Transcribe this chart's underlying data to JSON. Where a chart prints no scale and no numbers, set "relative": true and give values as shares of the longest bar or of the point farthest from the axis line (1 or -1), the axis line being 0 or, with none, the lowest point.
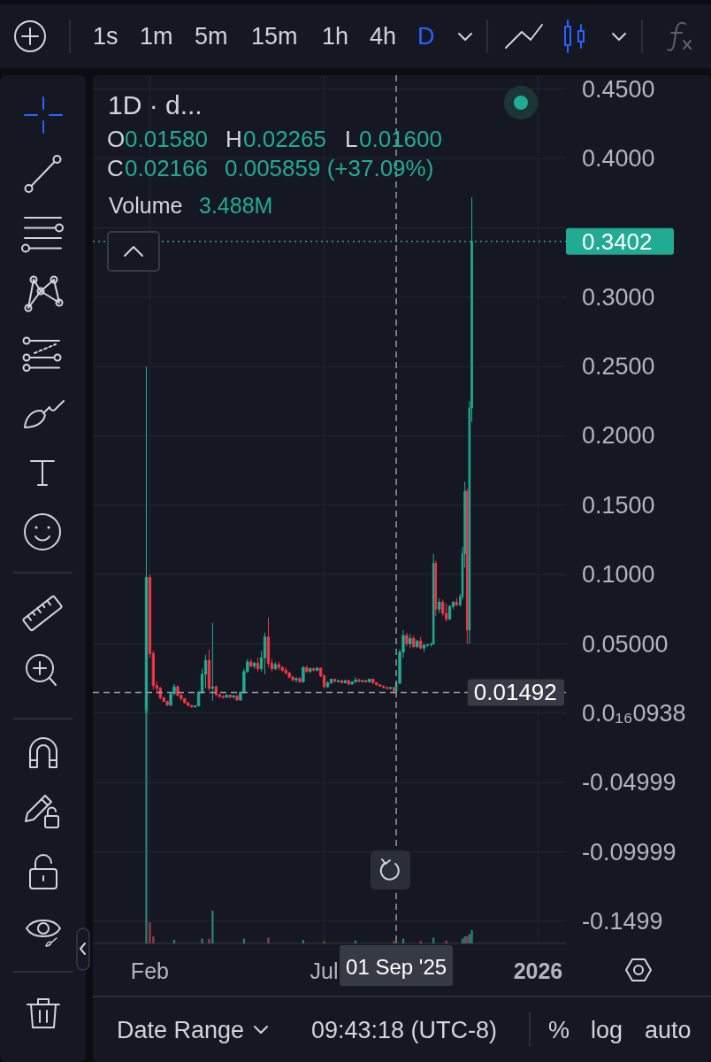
{
  "chart_data": [
    {
      "type": "candlestick",
      "title": "1D · d...",
      "x": [
        "2025-01-29",
        "2025-02-01",
        "2025-02-04",
        "2025-02-07",
        "2025-02-10",
        "2025-02-13",
        "2025-02-16",
        "2025-02-19",
        "2025-02-22",
        "2025-02-25",
        "2025-02-28",
        "2025-03-03",
        "2025-03-06",
        "2025-03-09",
        "2025-03-12",
        "2025-03-15",
        "2025-03-18",
        "2025-03-21",
        "2025-03-24",
        "2025-03-27",
        "2025-03-30",
        "2025-04-02",
        "2025-04-05",
        "2025-04-08",
        "2025-04-11",
        "2025-04-14",
        "2025-04-17",
        "2025-04-20",
        "2025-04-23",
        "2025-04-26",
        "2025-04-29",
        "2025-05-02",
        "2025-05-05",
        "2025-05-08",
        "2025-05-11",
        "2025-05-14",
        "2025-05-17",
        "2025-05-20",
        "2025-05-23",
        "2025-05-26",
        "2025-05-29",
        "2025-06-01",
        "2025-06-04",
        "2025-06-07",
        "2025-06-10",
        "2025-06-13",
        "2025-06-16",
        "2025-06-19",
        "2025-06-22",
        "2025-06-25",
        "2025-06-28",
        "2025-07-01",
        "2025-07-04",
        "2025-07-07",
        "2025-07-10",
        "2025-07-13",
        "2025-07-16",
        "2025-07-19",
        "2025-07-22",
        "2025-07-25",
        "2025-07-28",
        "2025-07-31",
        "2025-08-03",
        "2025-08-06",
        "2025-08-09",
        "2025-08-12",
        "2025-08-15",
        "2025-08-18",
        "2025-08-21",
        "2025-08-24",
        "2025-08-27",
        "2025-08-30",
        "2025-09-01",
        "2025-09-04",
        "2025-09-07",
        "2025-09-10",
        "2025-09-13",
        "2025-09-16",
        "2025-09-19",
        "2025-09-22",
        "2025-09-25",
        "2025-09-28",
        "2025-10-01",
        "2025-10-03",
        "2025-10-05",
        "2025-10-08",
        "2025-10-11",
        "2025-10-14",
        "2025-10-17",
        "2025-10-20",
        "2025-10-23",
        "2025-10-26",
        "2025-10-28",
        "2025-10-30",
        "2025-11-01",
        "2025-11-03",
        "2025-11-05"
      ],
      "ohlc": [
        [
          0.0003,
          0.25,
          0.0002,
          0.098
        ],
        [
          0.098,
          0.1,
          0.04,
          0.043
        ],
        [
          0.043,
          0.045,
          0.017,
          0.02
        ],
        [
          0.02,
          0.023,
          0.014,
          0.018
        ],
        [
          0.018,
          0.019,
          0.01,
          0.011
        ],
        [
          0.011,
          0.012,
          0.008,
          0.0085
        ],
        [
          0.0085,
          0.009,
          0.005,
          0.006
        ],
        [
          0.006,
          0.015,
          0.005,
          0.014
        ],
        [
          0.014,
          0.021,
          0.013,
          0.019
        ],
        [
          0.019,
          0.02,
          0.012,
          0.013
        ],
        [
          0.013,
          0.014,
          0.009,
          0.0105
        ],
        [
          0.0105,
          0.011,
          0.007,
          0.0075
        ],
        [
          0.0075,
          0.008,
          0.005,
          0.0055
        ],
        [
          0.0055,
          0.006,
          0.004,
          0.0045
        ],
        [
          0.0045,
          0.006,
          0.004,
          0.0052
        ],
        [
          0.0052,
          0.016,
          0.005,
          0.015
        ],
        [
          0.015,
          0.032,
          0.014,
          0.028
        ],
        [
          0.028,
          0.042,
          0.018,
          0.038
        ],
        [
          0.038,
          0.046,
          0.016,
          0.018
        ],
        [
          0.018,
          0.065,
          0.009,
          0.019
        ],
        [
          0.019,
          0.02,
          0.012,
          0.0135
        ],
        [
          0.0135,
          0.014,
          0.011,
          0.012
        ],
        [
          0.012,
          0.013,
          0.0105,
          0.0115
        ],
        [
          0.0115,
          0.0135,
          0.011,
          0.013
        ],
        [
          0.013,
          0.0135,
          0.011,
          0.0115
        ],
        [
          0.0115,
          0.013,
          0.011,
          0.0125
        ],
        [
          0.0125,
          0.013,
          0.009,
          0.0095
        ],
        [
          0.0095,
          0.016,
          0.009,
          0.015
        ],
        [
          0.015,
          0.032,
          0.014,
          0.03
        ],
        [
          0.03,
          0.039,
          0.029,
          0.037
        ],
        [
          0.037,
          0.039,
          0.033,
          0.034
        ],
        [
          0.034,
          0.037,
          0.032,
          0.036
        ],
        [
          0.036,
          0.04,
          0.03,
          0.032
        ],
        [
          0.032,
          0.045,
          0.03,
          0.04
        ],
        [
          0.04,
          0.058,
          0.028,
          0.055
        ],
        [
          0.055,
          0.069,
          0.033,
          0.036
        ],
        [
          0.036,
          0.039,
          0.03,
          0.032
        ],
        [
          0.032,
          0.037,
          0.031,
          0.035
        ],
        [
          0.035,
          0.037,
          0.031,
          0.033
        ],
        [
          0.033,
          0.034,
          0.03,
          0.031
        ],
        [
          0.031,
          0.033,
          0.028,
          0.029
        ],
        [
          0.029,
          0.03,
          0.025,
          0.026
        ],
        [
          0.026,
          0.027,
          0.023,
          0.024
        ],
        [
          0.024,
          0.026,
          0.022,
          0.025
        ],
        [
          0.025,
          0.026,
          0.022,
          0.0225
        ],
        [
          0.0225,
          0.034,
          0.022,
          0.033
        ],
        [
          0.033,
          0.0345,
          0.029,
          0.03
        ],
        [
          0.03,
          0.033,
          0.029,
          0.032
        ],
        [
          0.032,
          0.033,
          0.03,
          0.031
        ],
        [
          0.031,
          0.0335,
          0.03,
          0.0325
        ],
        [
          0.0325,
          0.033,
          0.026,
          0.027
        ],
        [
          0.027,
          0.028,
          0.018,
          0.019
        ],
        [
          0.019,
          0.023,
          0.0185,
          0.022
        ],
        [
          0.022,
          0.025,
          0.021,
          0.0245
        ],
        [
          0.0245,
          0.025,
          0.022,
          0.023
        ],
        [
          0.023,
          0.024,
          0.022,
          0.0235
        ],
        [
          0.0235,
          0.024,
          0.0215,
          0.022
        ],
        [
          0.022,
          0.024,
          0.0215,
          0.0235
        ],
        [
          0.0235,
          0.024,
          0.02,
          0.021
        ],
        [
          0.021,
          0.023,
          0.0205,
          0.0225
        ],
        [
          0.0225,
          0.026,
          0.022,
          0.024
        ],
        [
          0.024,
          0.025,
          0.022,
          0.023
        ],
        [
          0.023,
          0.024,
          0.022,
          0.0235
        ],
        [
          0.0235,
          0.024,
          0.022,
          0.0225
        ],
        [
          0.0225,
          0.025,
          0.022,
          0.0245
        ],
        [
          0.0245,
          0.025,
          0.021,
          0.022
        ],
        [
          0.022,
          0.0225,
          0.02,
          0.0205
        ],
        [
          0.0205,
          0.021,
          0.019,
          0.0195
        ],
        [
          0.0195,
          0.02,
          0.018,
          0.0185
        ],
        [
          0.0185,
          0.019,
          0.017,
          0.0178
        ],
        [
          0.0178,
          0.019,
          0.017,
          0.0185
        ],
        [
          0.0185,
          0.019,
          0.014,
          0.0158
        ],
        [
          0.0158,
          0.02265,
          0.0158,
          0.02166
        ],
        [
          0.02166,
          0.046,
          0.021,
          0.044
        ],
        [
          0.044,
          0.06,
          0.04,
          0.056
        ],
        [
          0.056,
          0.058,
          0.048,
          0.05
        ],
        [
          0.05,
          0.057,
          0.047,
          0.054
        ],
        [
          0.054,
          0.056,
          0.047,
          0.048
        ],
        [
          0.048,
          0.053,
          0.047,
          0.052
        ],
        [
          0.052,
          0.055,
          0.046,
          0.047
        ],
        [
          0.047,
          0.05,
          0.044,
          0.049
        ],
        [
          0.049,
          0.05,
          0.048,
          0.0495
        ],
        [
          0.0495,
          0.051,
          0.048,
          0.05
        ],
        [
          0.05,
          0.115,
          0.049,
          0.108
        ],
        [
          0.108,
          0.11,
          0.07,
          0.075
        ],
        [
          0.075,
          0.083,
          0.072,
          0.08
        ],
        [
          0.08,
          0.082,
          0.07,
          0.072
        ],
        [
          0.072,
          0.079,
          0.066,
          0.068
        ],
        [
          0.068,
          0.078,
          0.067,
          0.077
        ],
        [
          0.077,
          0.081,
          0.075,
          0.08
        ],
        [
          0.08,
          0.083,
          0.077,
          0.078
        ],
        [
          0.078,
          0.086,
          0.077,
          0.084
        ],
        [
          0.084,
          0.12,
          0.082,
          0.115
        ],
        [
          0.115,
          0.167,
          0.105,
          0.16
        ],
        [
          0.16,
          0.162,
          0.05,
          0.06
        ],
        [
          0.06,
          0.225,
          0.05,
          0.22
        ],
        [
          0.22,
          0.372,
          0.21,
          0.3402
        ]
      ],
      "colors": [
        "#22ab94",
        "#f23645",
        "#f23645",
        "#f23645",
        "#f23645",
        "#f23645",
        "#f23645",
        "#22ab94",
        "#22ab94",
        "#f23645",
        "#f23645",
        "#f23645",
        "#f23645",
        "#f23645",
        "#22ab94",
        "#22ab94",
        "#22ab94",
        "#22ab94",
        "#f23645",
        "#22ab94",
        "#f23645",
        "#f23645",
        "#f23645",
        "#22ab94",
        "#f23645",
        "#22ab94",
        "#f23645",
        "#22ab94",
        "#22ab94",
        "#22ab94",
        "#f23645",
        "#22ab94",
        "#f23645",
        "#22ab94",
        "#22ab94",
        "#f23645",
        "#f23645",
        "#22ab94",
        "#f23645",
        "#f23645",
        "#f23645",
        "#f23645",
        "#f23645",
        "#22ab94",
        "#f23645",
        "#22ab94",
        "#f23645",
        "#22ab94",
        "#f23645",
        "#22ab94",
        "#f23645",
        "#f23645",
        "#22ab94",
        "#22ab94",
        "#f23645",
        "#22ab94",
        "#f23645",
        "#22ab94",
        "#f23645",
        "#22ab94",
        "#22ab94",
        "#f23645",
        "#22ab94",
        "#f23645",
        "#22ab94",
        "#f23645",
        "#f23645",
        "#f23645",
        "#f23645",
        "#f23645",
        "#22ab94",
        "#f23645",
        "#22ab94",
        "#22ab94",
        "#22ab94",
        "#f23645",
        "#22ab94",
        "#f23645",
        "#22ab94",
        "#f23645",
        "#22ab94",
        "#22ab94",
        "#22ab94",
        "#22ab94",
        "#f23645",
        "#22ab94",
        "#f23645",
        "#f23645",
        "#22ab94",
        "#22ab94",
        "#f23645",
        "#22ab94",
        "#22ab94",
        "#22ab94",
        "#f23645",
        "#22ab94",
        "#22ab94"
      ],
      "xlim": [
        "2024-12-14",
        "2026-01-25"
      ],
      "ylim": [
        -0.166,
        0.46
      ],
      "xticks": [
        {
          "value": "2025-02-01",
          "label": "Feb"
        },
        {
          "value": "2025-07-01",
          "label": "Jul"
        },
        {
          "value": "2026-01-01",
          "label": "2026"
        }
      ],
      "yticks": [
        {
          "value": 0.45,
          "label": "0.4500"
        },
        {
          "value": 0.4,
          "label": "0.4000"
        },
        {
          "value": 0.35,
          "label": null
        },
        {
          "value": 0.3,
          "label": "0.3000"
        },
        {
          "value": 0.25,
          "label": "0.2500"
        },
        {
          "value": 0.2,
          "label": "0.2000"
        },
        {
          "value": 0.15,
          "label": "0.1500"
        },
        {
          "value": 0.1,
          "label": "0.1000"
        },
        {
          "value": 0.05,
          "label": "0.05000"
        },
        {
          "value": 0,
          "label": "0.0₁₆0938"
        },
        -0.04999,
        -0.09999,
        -0.1499
      ],
      "grid": true,
      "ref_lines": [
        {
          "axis": "y",
          "value": 0.3402,
          "label": "0.3402",
          "color": "#22ab94",
          "line_style": "dotted"
        },
        {
          "axis": "y",
          "value": 0.01492,
          "label": "0.01492",
          "color": "#9598a1",
          "line_style": "dashed"
        },
        {
          "axis": "x",
          "value": "2025-09-01",
          "label": "01 Sep '25",
          "color": "#9598a1",
          "line_style": "dashed"
        }
      ],
      "annotations": [
        "1s",
        "1m",
        "5m",
        "15m",
        "1h",
        "4h",
        "D",
        "O",
        "0.01580",
        "H",
        "0.02265",
        "L",
        "0.01600",
        "C",
        "0.02166",
        "0.005859 (+37.09%)",
        "Volume",
        "3.488M",
        "Date Range",
        "09:43:18 (UTC-8)",
        "%",
        "log",
        "auto"
      ]
    },
    {
      "type": "bar",
      "relative": true,
      "x": [
        "2025-01-29",
        "2025-02-01",
        "2025-02-04",
        "2025-02-22",
        "2025-03-18",
        "2025-03-24",
        "2025-03-27",
        "2025-04-23",
        "2025-05-14",
        "2025-06-13",
        "2025-07-01",
        "2025-07-28",
        "2025-08-30",
        "2025-09-01",
        "2025-09-07",
        "2025-09-22",
        "2025-10-03",
        "2025-10-14",
        "2025-10-28",
        "2025-10-30",
        "2025-11-01",
        "2025-11-03",
        "2025-11-05"
      ],
      "values": [
        1,
        0.09,
        0.03,
        0.015,
        0.02,
        0.02,
        0.14,
        0.02,
        0.025,
        0.015,
        0.01,
        0.012,
        0.01,
        0.012,
        0.02,
        0.01,
        0.025,
        0.012,
        0.02,
        0.03,
        0.03,
        0.04,
        0.057
      ],
      "colors": [
        "#2a7d72",
        "#9c3a42",
        "#9c3a42",
        "#2a7d72",
        "#2a7d72",
        "#9c3a42",
        "#2a7d72",
        "#2a7d72",
        "#9c3a42",
        "#2a7d72",
        "#9c3a42",
        "#2a7d72",
        "#9c3a42",
        "#2a7d72",
        "#2a7d72",
        "#9c3a42",
        "#2a7d72",
        "#9c3a42",
        "#2a7d72",
        "#2a7d72",
        "#9c3a42",
        "#2a7d72",
        "#2a7d72"
      ],
      "xlim": [
        "2024-12-14",
        "2026-01-25"
      ]
    }
  ]
}
